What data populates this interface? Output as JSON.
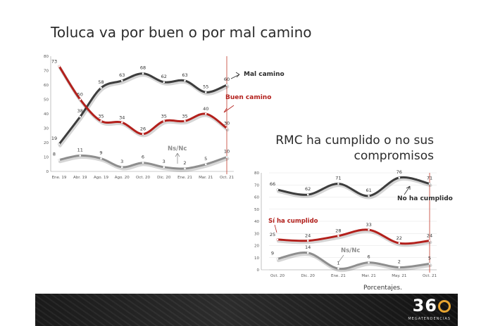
{
  "slide": {
    "title": "Toluca va por buen o por mal camino",
    "subtitle": "RMC ha cumplido o no sus compromisos",
    "footnote": "Porcentajes.",
    "logo_text": "36",
    "logo_subtext": "MEGATENDENCIAS"
  },
  "chart_data": [
    {
      "type": "line",
      "title": "Toluca va por buen o por mal camino",
      "x": [
        "Ene. 19",
        "Abr. 19",
        "Ago. 19",
        "Ago. 20",
        "Oct. 20",
        "Dic. 20",
        "Ene. 21",
        "Mar. 21",
        "Oct. 21"
      ],
      "ylim": [
        0,
        80
      ],
      "yticks": [
        "0",
        "10",
        "20",
        "30",
        "40",
        "50",
        "60",
        "70",
        "80"
      ],
      "series": [
        {
          "name": "Mal camino",
          "values": [
            19,
            38,
            58,
            63,
            68,
            62,
            63,
            55,
            60
          ],
          "color": "#3d3d3d"
        },
        {
          "name": "Buen camino",
          "values": [
            73,
            50,
            35,
            34,
            26,
            35,
            35,
            40,
            30
          ],
          "color": "#b3201c"
        },
        {
          "name": "Ns/Nc",
          "values": [
            8,
            11,
            9,
            3,
            6,
            3,
            2,
            5,
            10
          ],
          "color": "#8e8e8e"
        }
      ],
      "highlight_last": true,
      "grid": false
    },
    {
      "type": "line",
      "title": "RMC ha cumplido o no sus compromisos",
      "x": [
        "Oct. 20",
        "Dic. 20",
        "Ene. 21",
        "Mar. 21",
        "May. 21",
        "Oct. 21"
      ],
      "ylim": [
        0,
        80
      ],
      "yticks": [
        "0",
        "10",
        "20",
        "30",
        "40",
        "50",
        "60",
        "70",
        "80"
      ],
      "series": [
        {
          "name": "No ha cumplido",
          "values": [
            66,
            62,
            71,
            61,
            76,
            71
          ],
          "color": "#3d3d3d"
        },
        {
          "name": "Sí ha cumplido",
          "values": [
            25,
            24,
            28,
            33,
            22,
            24
          ],
          "color": "#b3201c"
        },
        {
          "name": "Ns/Nc",
          "values": [
            9,
            14,
            1,
            6,
            2,
            5
          ],
          "color": "#8e8e8e"
        }
      ],
      "highlight_last": true,
      "grid": true
    }
  ]
}
